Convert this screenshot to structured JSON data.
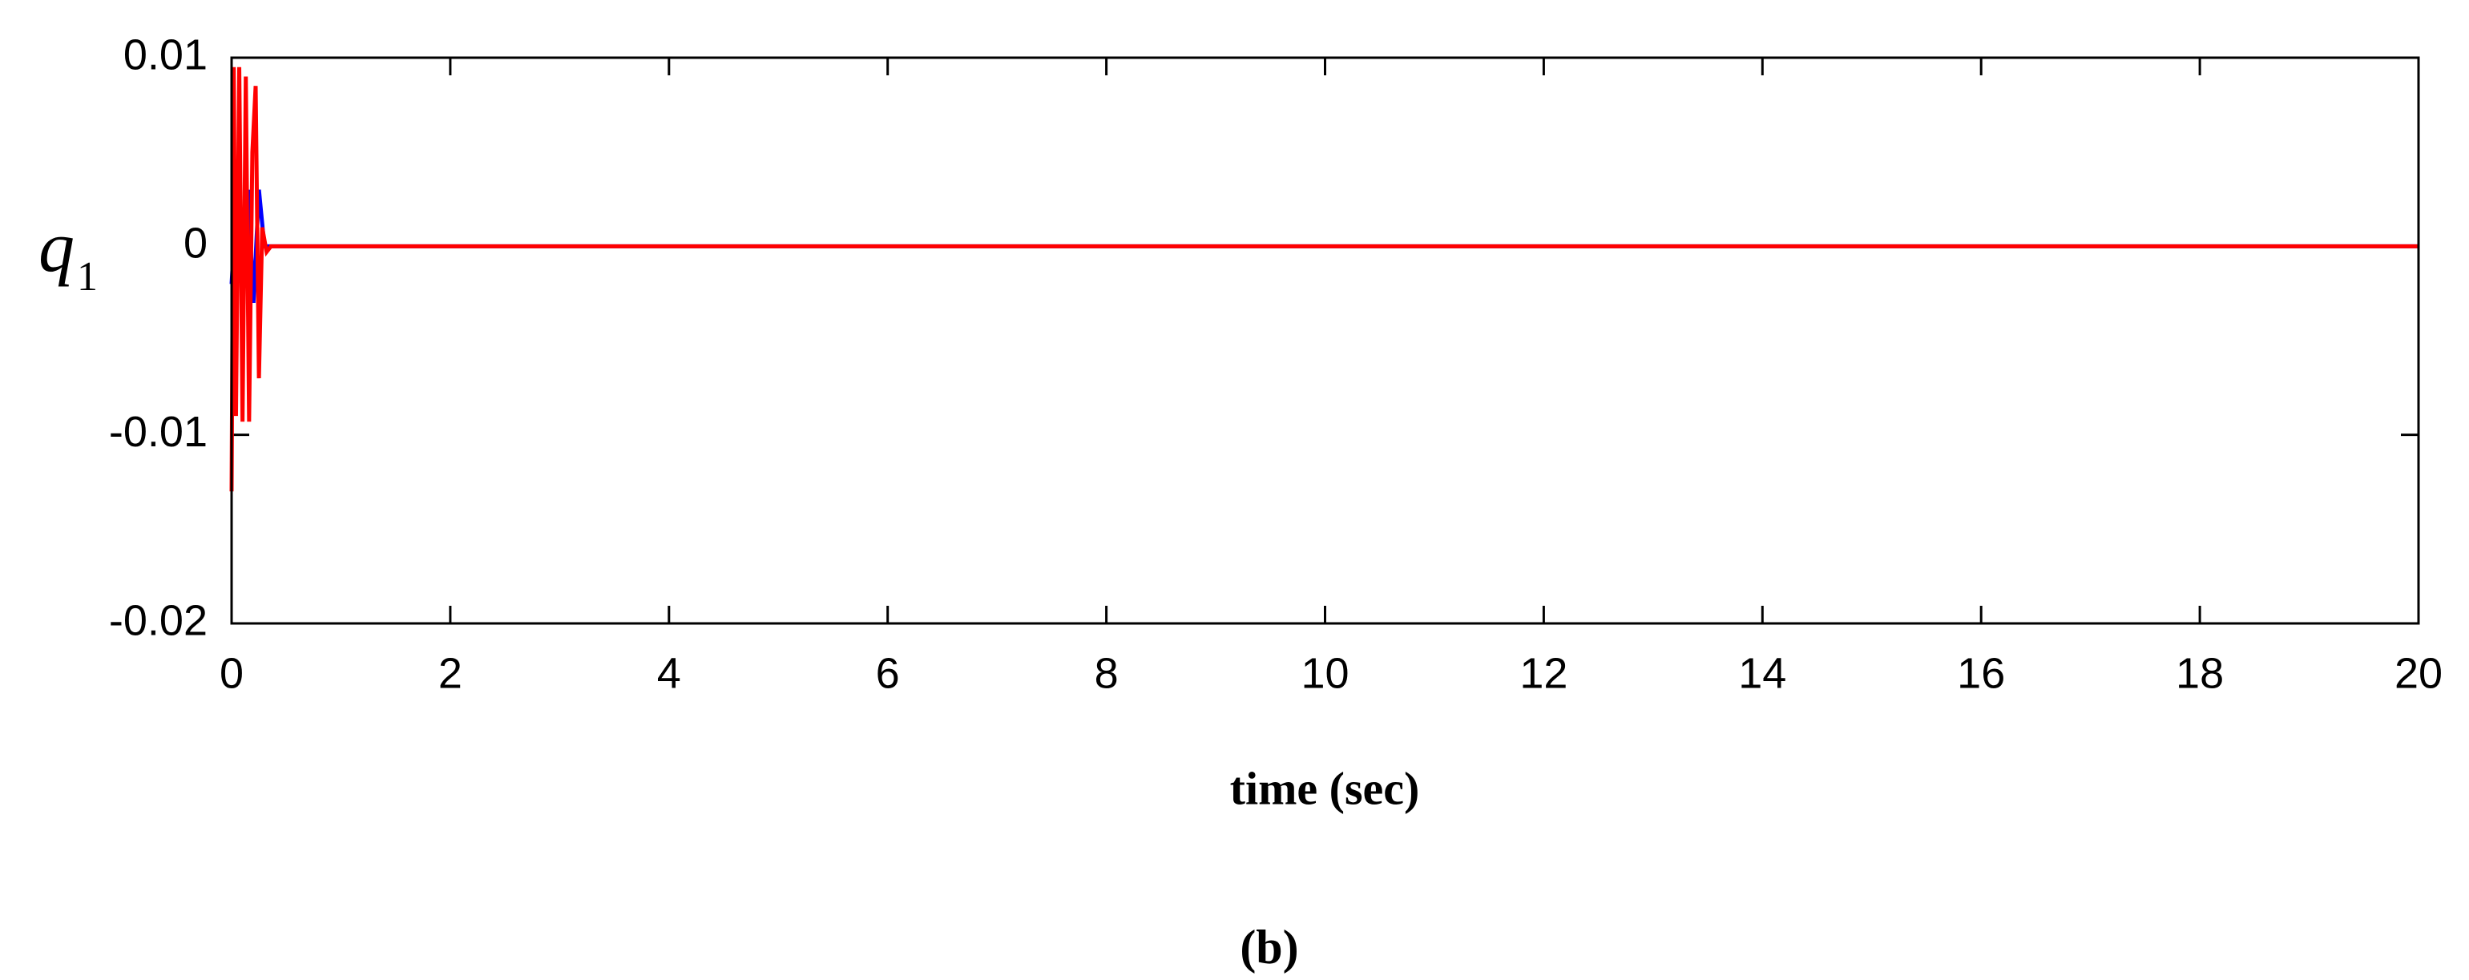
{
  "chart_data": {
    "type": "line",
    "xlabel": "time (sec)",
    "ylabel": "q",
    "ylabel_subscript": "1",
    "caption": "(b)",
    "xlim": [
      0,
      20
    ],
    "xticks": [
      0,
      2,
      4,
      6,
      8,
      10,
      12,
      14,
      16,
      18,
      20
    ],
    "ylim": [
      -0.02,
      0.01
    ],
    "yticks": [
      0.01,
      0,
      -0.01,
      -0.02
    ],
    "grid": false,
    "series": [
      {
        "color": "#0000ff",
        "x": [
          0,
          0.05,
          0.1,
          0.15,
          0.2,
          0.25,
          0.3,
          20
        ],
        "values": [
          -0.002,
          0.003,
          -0.002,
          0.003,
          -0.003,
          0.003,
          0,
          0
        ]
      },
      {
        "color": "#ff0000",
        "x": [
          0,
          0.02,
          0.04,
          0.07,
          0.1,
          0.13,
          0.16,
          0.19,
          0.22,
          0.25,
          0.28,
          0.32,
          0.36,
          20
        ],
        "values": [
          -0.013,
          0.0095,
          -0.009,
          0.0095,
          -0.0093,
          0.009,
          -0.0093,
          0.005,
          0.0085,
          -0.007,
          0.001,
          -0.0003,
          0,
          0
        ]
      }
    ]
  }
}
